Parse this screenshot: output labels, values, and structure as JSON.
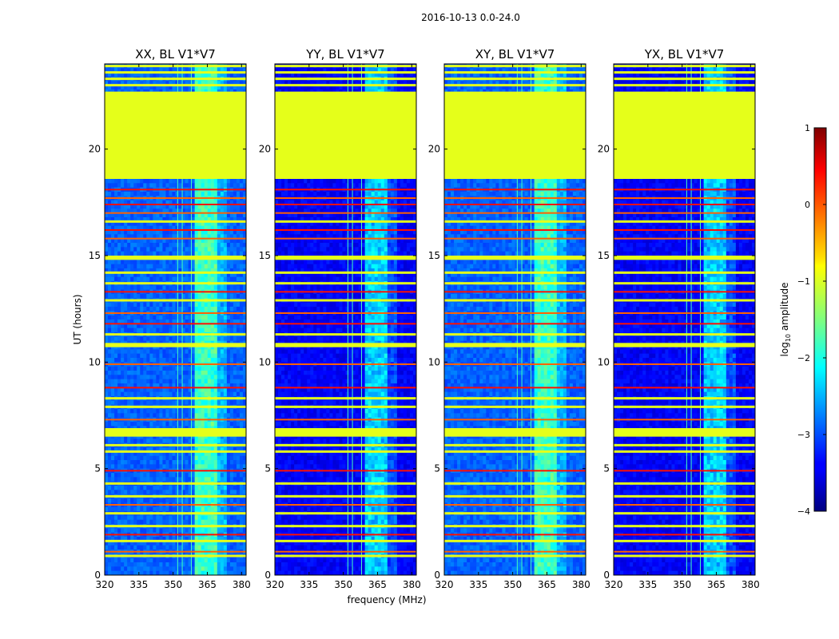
{
  "figure": {
    "suptitle": "2016-10-13 0.0-24.0",
    "xlabel": "frequency (MHz)",
    "ylabel": "UT (hours)"
  },
  "colorbar": {
    "label_prefix": "log",
    "label_sub": "10",
    "label_suffix": " amplitude",
    "ticks": [
      -4,
      -3,
      -2,
      -1,
      0,
      1
    ],
    "range": [
      -4,
      1
    ],
    "colormap": "jet"
  },
  "chart_data": {
    "type": "heatmap",
    "x_range": [
      320,
      382
    ],
    "x_ticks": [
      320,
      335,
      350,
      365,
      380
    ],
    "y_range": [
      0,
      24
    ],
    "y_ticks": [
      0,
      5,
      10,
      15,
      20
    ],
    "panels": [
      {
        "title": "XX, BL V1*V7",
        "background_level": -2.9
      },
      {
        "title": "YY, BL V1*V7",
        "background_level": -3.4
      },
      {
        "title": "XY, BL V1*V7",
        "background_level": -2.9
      },
      {
        "title": "YX, BL V1*V7",
        "background_level": -3.4
      }
    ],
    "flagged_value": -1.0,
    "flagged_blocks": [
      [
        18.6,
        22.7
      ],
      [
        6.5,
        6.9
      ],
      [
        10.7,
        10.9
      ],
      [
        14.8,
        15.0
      ]
    ],
    "bright_band_mhz": [
      360,
      370
    ],
    "rfi_freq_lines": [
      352,
      354,
      358
    ],
    "bright_time_rows": [
      1.1,
      1.9,
      3.3,
      4.9,
      7.3,
      8.8,
      9.9,
      11.8,
      12.3,
      13.3,
      15.8,
      16.2,
      17.0,
      17.4,
      17.7,
      18.1
    ],
    "flag_time_rows": [
      0.9,
      1.6,
      2.3,
      2.9,
      3.7,
      4.3,
      5.8,
      6.1,
      7.9,
      8.3,
      11.3,
      12.9,
      13.7,
      14.2,
      16.6,
      23.0,
      23.3,
      23.6,
      23.9
    ]
  }
}
